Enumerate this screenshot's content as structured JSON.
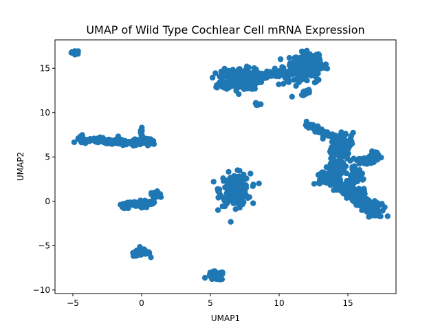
{
  "chart_data": {
    "type": "scatter",
    "title": "UMAP of Wild Type Cochlear Cell mRNA Expression",
    "xlabel": "UMAP1",
    "ylabel": "UMAP2",
    "xlim": [
      -6.3,
      18.5
    ],
    "ylim": [
      -10.4,
      18.2
    ],
    "x_ticks": [
      -5,
      0,
      5,
      10,
      15
    ],
    "x_tick_labels": [
      "−5",
      "0",
      "5",
      "10",
      "15"
    ],
    "y_ticks": [
      -10,
      -5,
      0,
      5,
      10,
      15
    ],
    "y_tick_labels": [
      "−10",
      "−5",
      "0",
      "5",
      "10",
      "15"
    ],
    "grid": false,
    "legend": "none",
    "point_color": "#1f77b4",
    "marker": "circle",
    "clusters": [
      {
        "cx": -4.8,
        "cy": 16.8,
        "sx": 0.15,
        "sy": 0.1,
        "n": 25
      },
      {
        "segment": [
          [
            -4.7,
            7.1
          ],
          [
            -3.5,
            6.9
          ],
          [
            -2.5,
            6.8
          ],
          [
            -1.5,
            6.6
          ],
          [
            -0.5,
            6.6
          ],
          [
            0.2,
            6.8
          ],
          [
            0.9,
            6.6
          ]
        ],
        "spread": 0.18,
        "n": 160
      },
      {
        "cx": 0.0,
        "cy": 7.7,
        "sx": 0.08,
        "sy": 0.35,
        "n": 10
      },
      {
        "segment": [
          [
            -1.5,
            -0.5
          ],
          [
            -0.8,
            -0.3
          ],
          [
            0.2,
            -0.6
          ],
          [
            0.8,
            0.3
          ],
          [
            1.2,
            1.1
          ]
        ],
        "spread": 0.18,
        "n": 60
      },
      {
        "cx": 0.0,
        "cy": -5.8,
        "sx": 0.3,
        "sy": 0.2,
        "n": 60
      },
      {
        "cx": 5.4,
        "cy": -8.4,
        "sx": 0.3,
        "sy": 0.25,
        "n": 50
      },
      {
        "cx": 6.8,
        "cy": 1.3,
        "sx": 0.55,
        "sy": 0.9,
        "n": 180
      },
      {
        "cx": 7.2,
        "cy": 13.8,
        "sx": 0.7,
        "sy": 0.6,
        "n": 260
      },
      {
        "segment": [
          [
            5.3,
            13.0
          ],
          [
            6.2,
            13.4
          ]
        ],
        "spread": 0.12,
        "n": 20
      },
      {
        "segment": [
          [
            8.0,
            14.0
          ],
          [
            9.5,
            14.3
          ],
          [
            10.5,
            14.5
          ]
        ],
        "spread": 0.2,
        "n": 50
      },
      {
        "cx": 8.5,
        "cy": 11.0,
        "sx": 0.1,
        "sy": 0.1,
        "n": 6
      },
      {
        "cx": 11.6,
        "cy": 14.8,
        "sx": 0.8,
        "sy": 0.8,
        "n": 140
      },
      {
        "cx": 12.3,
        "cy": 15.6,
        "sx": 0.5,
        "sy": 0.5,
        "n": 100
      },
      {
        "segment": [
          [
            11.8,
            12.0
          ],
          [
            12.2,
            12.6
          ]
        ],
        "spread": 0.1,
        "n": 10
      },
      {
        "segment": [
          [
            12.0,
            8.8
          ],
          [
            13.0,
            8.0
          ],
          [
            13.8,
            7.2
          ]
        ],
        "spread": 0.2,
        "n": 50
      },
      {
        "segment": [
          [
            13.3,
            2.4
          ],
          [
            14.2,
            3.0
          ],
          [
            14.5,
            5.5
          ],
          [
            14.5,
            7.5
          ]
        ],
        "spread": 0.35,
        "n": 240
      },
      {
        "segment": [
          [
            14.5,
            2.0
          ],
          [
            15.3,
            1.0
          ],
          [
            16.2,
            0.0
          ],
          [
            16.8,
            -1.0
          ],
          [
            17.0,
            -1.5
          ]
        ],
        "spread": 0.35,
        "n": 220
      },
      {
        "segment": [
          [
            15.8,
            4.5
          ],
          [
            16.8,
            4.8
          ],
          [
            17.2,
            5.5
          ]
        ],
        "spread": 0.25,
        "n": 60
      },
      {
        "segment": [
          [
            15.3,
            4.0
          ],
          [
            15.8,
            2.5
          ]
        ],
        "spread": 0.2,
        "n": 30
      }
    ]
  }
}
